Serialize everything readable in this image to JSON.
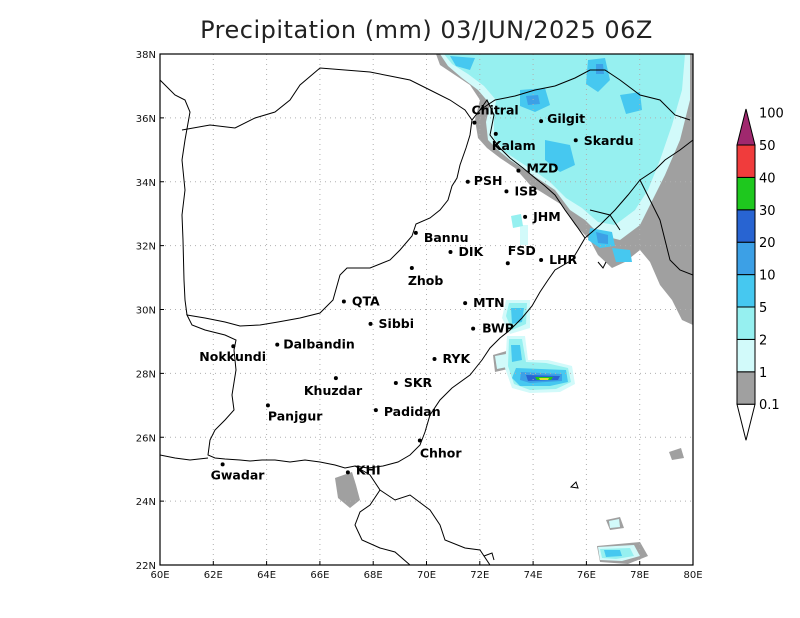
{
  "title": "Precipitation (mm) 03/JUN/2025 06Z",
  "axes": {
    "x_ticks": [
      "60E",
      "62E",
      "64E",
      "66E",
      "68E",
      "70E",
      "72E",
      "74E",
      "76E",
      "78E",
      "80E"
    ],
    "y_ticks": [
      "22N",
      "24N",
      "26N",
      "28N",
      "30N",
      "32N",
      "34N",
      "36N",
      "38N"
    ],
    "x_range": [
      60,
      80
    ],
    "y_range": [
      22,
      38
    ],
    "grid": true
  },
  "colorbar": {
    "labels": [
      "0.1",
      "1",
      "2",
      "5",
      "10",
      "20",
      "30",
      "40",
      "50",
      "100"
    ],
    "colors": [
      "#a0a0a0",
      "#d2fafa",
      "#96f0f0",
      "#46c8f0",
      "#3ca0e6",
      "#2864d2",
      "#1ec81e",
      "#e6dc32",
      "#f03c3c",
      "#a0286e"
    ],
    "extends": "both"
  },
  "cities": [
    {
      "name": "Chitral",
      "lon": 71.8,
      "lat": 35.85
    },
    {
      "name": "Gilgit",
      "lon": 74.3,
      "lat": 35.9
    },
    {
      "name": "Kalam",
      "lon": 72.6,
      "lat": 35.5
    },
    {
      "name": "Skardu",
      "lon": 75.6,
      "lat": 35.3
    },
    {
      "name": "MZD",
      "lon": 73.45,
      "lat": 34.35
    },
    {
      "name": "PSH",
      "lon": 71.55,
      "lat": 34.0
    },
    {
      "name": "ISB",
      "lon": 73.0,
      "lat": 33.7
    },
    {
      "name": "JHM",
      "lon": 73.7,
      "lat": 32.9
    },
    {
      "name": "Bannu",
      "lon": 69.6,
      "lat": 32.4
    },
    {
      "name": "DIK",
      "lon": 70.9,
      "lat": 31.8
    },
    {
      "name": "FSD",
      "lon": 73.05,
      "lat": 31.45
    },
    {
      "name": "LHR",
      "lon": 74.3,
      "lat": 31.55
    },
    {
      "name": "Zhob",
      "lon": 69.45,
      "lat": 31.3
    },
    {
      "name": "QTA",
      "lon": 66.9,
      "lat": 30.25
    },
    {
      "name": "MTN",
      "lon": 71.45,
      "lat": 30.2
    },
    {
      "name": "Sibbi",
      "lon": 67.9,
      "lat": 29.55
    },
    {
      "name": "BWP",
      "lon": 71.75,
      "lat": 29.4
    },
    {
      "name": "Nokkundi",
      "lon": 62.75,
      "lat": 28.85
    },
    {
      "name": "Dalbandin",
      "lon": 64.4,
      "lat": 28.9
    },
    {
      "name": "RYK",
      "lon": 70.3,
      "lat": 28.45
    },
    {
      "name": "Khuzdar",
      "lon": 66.6,
      "lat": 27.85
    },
    {
      "name": "SKR",
      "lon": 68.85,
      "lat": 27.7
    },
    {
      "name": "Panjgur",
      "lon": 64.05,
      "lat": 27.0
    },
    {
      "name": "Padidan",
      "lon": 68.1,
      "lat": 26.85
    },
    {
      "name": "Chhor",
      "lon": 69.75,
      "lat": 25.9
    },
    {
      "name": "KHI",
      "lon": 67.05,
      "lat": 24.9
    },
    {
      "name": "Gwadar",
      "lon": 62.35,
      "lat": 25.15
    }
  ]
}
